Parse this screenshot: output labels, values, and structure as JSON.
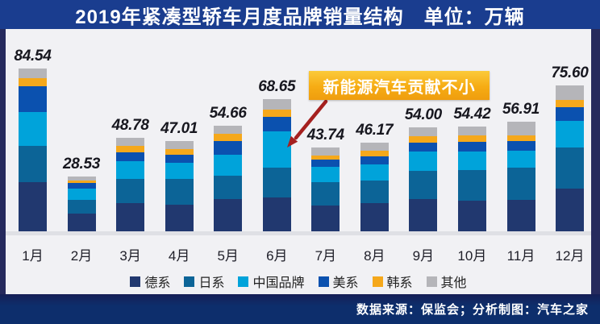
{
  "title": "2019年紧凑型轿车月度品牌销量结构　单位：万辆",
  "annotation": {
    "text": "新能源汽车贡献不小"
  },
  "footer": {
    "credit": "数据来源：保监会；分析制图：汽车之家"
  },
  "chart_data": {
    "type": "bar",
    "stacked": true,
    "unit": "万辆",
    "title": "2019年紧凑型轿车月度品牌销量结构",
    "legend_position": "bottom",
    "grid": false,
    "categories": [
      "1月",
      "2月",
      "3月",
      "4月",
      "5月",
      "6月",
      "7月",
      "8月",
      "9月",
      "10月",
      "11月",
      "12月"
    ],
    "totals": [
      84.54,
      28.53,
      48.78,
      47.01,
      54.66,
      68.65,
      43.74,
      46.17,
      54.0,
      54.42,
      56.91,
      75.6
    ],
    "total_labels": [
      "84.54",
      "28.53",
      "48.78",
      "47.01",
      "54.66",
      "68.65",
      "43.74",
      "46.17",
      "54.00",
      "54.42",
      "56.91",
      "75.60"
    ],
    "series": [
      {
        "key": "german",
        "name": "德系",
        "color": "#21386f",
        "values": [
          25.5,
          9.2,
          14.8,
          14.0,
          16.8,
          17.6,
          13.5,
          14.5,
          16.6,
          15.9,
          16.5,
          22.1
        ]
      },
      {
        "key": "japanese",
        "name": "日系",
        "color": "#0c6497",
        "values": [
          19.0,
          7.1,
          12.6,
          13.3,
          11.9,
          15.5,
          12.1,
          11.9,
          14.6,
          15.8,
          16.6,
          21.5
        ]
      },
      {
        "key": "chinese",
        "name": "中国品牌",
        "color": "#00a3da",
        "values": [
          17.5,
          5.7,
          9.2,
          8.4,
          11.2,
          19.0,
          7.8,
          8.4,
          10.4,
          9.8,
          8.7,
          13.7
        ]
      },
      {
        "key": "american",
        "name": "美系",
        "color": "#0b51af",
        "values": [
          13.2,
          3.2,
          4.6,
          4.2,
          7.0,
          7.4,
          4.0,
          4.3,
          4.6,
          5.0,
          5.1,
          7.1
        ]
      },
      {
        "key": "korean",
        "name": "韩系",
        "color": "#f5a81b",
        "values": [
          4.3,
          1.3,
          3.3,
          2.9,
          3.9,
          3.6,
          2.1,
          2.9,
          3.2,
          3.2,
          2.9,
          3.9
        ]
      },
      {
        "key": "other",
        "name": "其他",
        "color": "#b5b5b9",
        "values": [
          5.04,
          2.03,
          4.28,
          4.21,
          3.86,
          5.55,
          4.24,
          4.17,
          4.6,
          4.72,
          7.11,
          7.3
        ]
      }
    ]
  },
  "colors": {
    "title_bar": "#1a3d8f",
    "frame_border": "#262a5d",
    "content_bg": "#f1f1f4",
    "axis_strip": "#dfe0e5",
    "footer_top": "#161f56",
    "footer_main": "#0d2e6c",
    "callout_top": "#fbca3a",
    "callout_mid": "#f6ac14",
    "callout_bottom": "#ef9d0e",
    "arrow": "#a5201f"
  }
}
